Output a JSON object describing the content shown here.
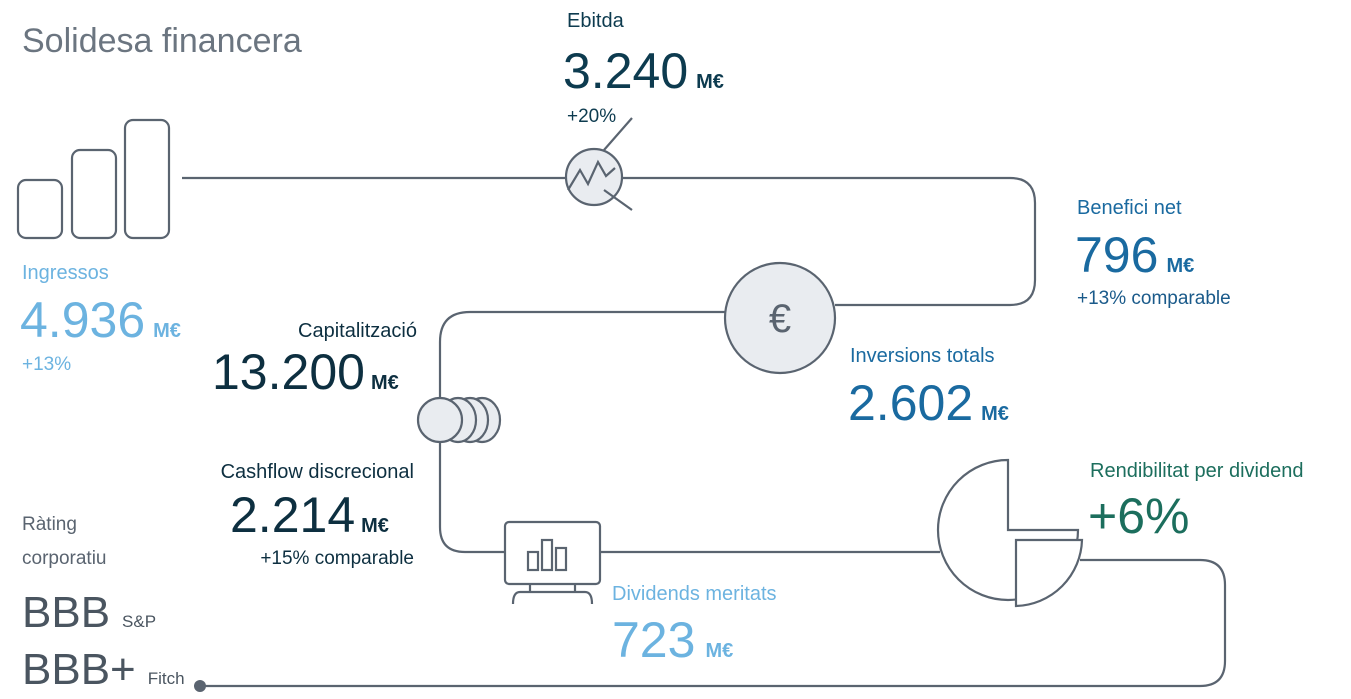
{
  "title": "Solidesa financera",
  "metrics": [
    {
      "label": "Ebitda",
      "value": "3.240",
      "unit": "M€",
      "change": "+20%"
    },
    {
      "label": "Benefici net",
      "value": "796",
      "unit": "M€",
      "change": "+13% comparable"
    },
    {
      "label": "Ingressos",
      "value": "4.936",
      "unit": "M€",
      "change": "+13%"
    },
    {
      "label": "Capitalització",
      "value": "13.200",
      "unit": "M€"
    },
    {
      "label": "Inversions totals",
      "value": "2.602",
      "unit": "M€"
    },
    {
      "label": "Cashflow discrecional",
      "value": "2.214",
      "unit": "M€",
      "change": "+15% comparable"
    },
    {
      "label": "Rendibilitat per dividend",
      "value": "+6%"
    },
    {
      "label": "Dividends meritats",
      "value": "723",
      "unit": "M€"
    }
  ],
  "rating": {
    "label": [
      "Ràting",
      "corporatiu"
    ],
    "items": [
      {
        "grade": "BBB",
        "agency": "S&P"
      },
      {
        "grade": "BBB+",
        "agency": "Fitch"
      }
    ]
  }
}
